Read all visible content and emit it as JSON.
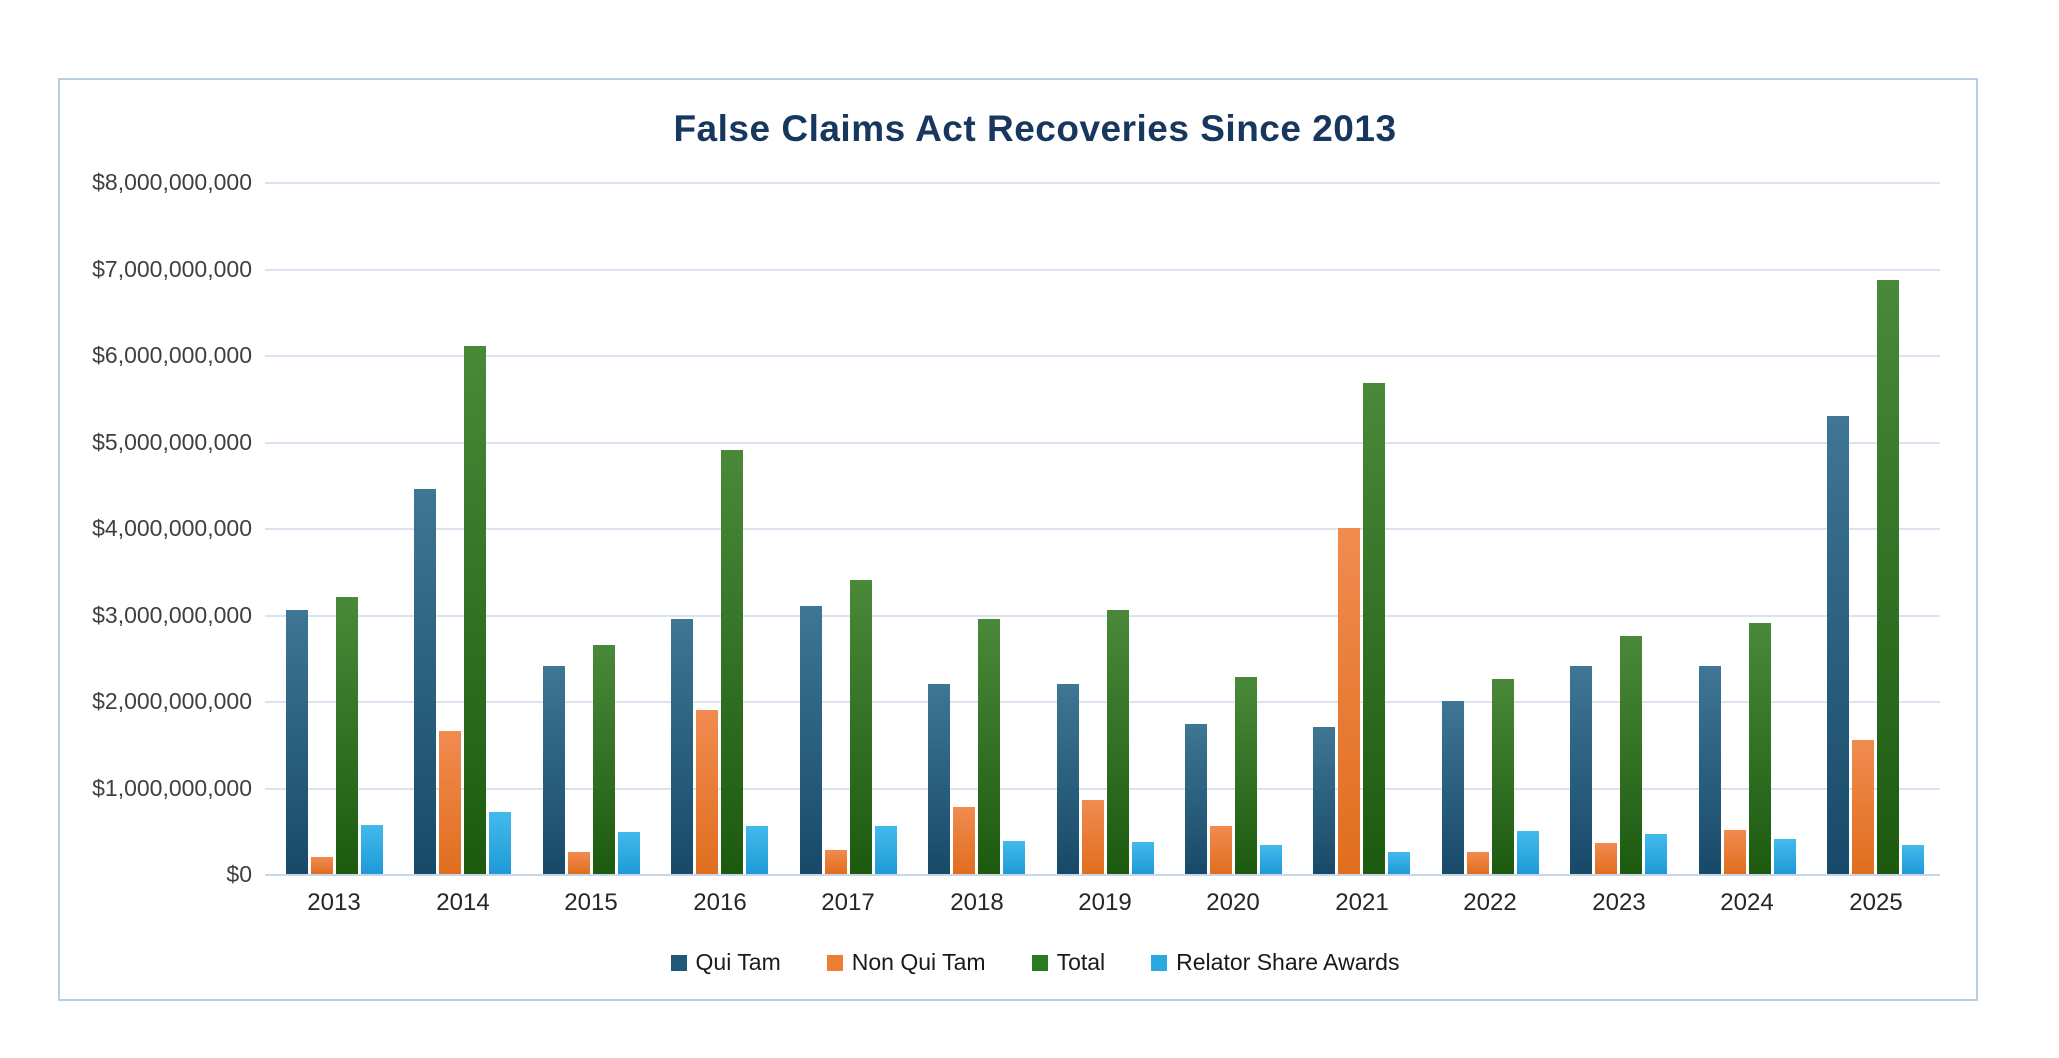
{
  "chart_data": {
    "type": "bar",
    "title": "False Claims Act Recoveries Since 2013",
    "unit": "USD billions",
    "categories": [
      "2013",
      "2014",
      "2015",
      "2016",
      "2017",
      "2018",
      "2019",
      "2020",
      "2021",
      "2022",
      "2023",
      "2024",
      "2025"
    ],
    "series": [
      {
        "name": "Qui Tam",
        "legend_color": "#1f5878",
        "gradient": [
          "#3e7694",
          "#174a68"
        ],
        "values": [
          3.05,
          4.45,
          2.4,
          2.95,
          3.1,
          2.2,
          2.2,
          1.73,
          1.7,
          2.0,
          2.4,
          2.4,
          5.3
        ]
      },
      {
        "name": "Non Qui Tam",
        "legend_color": "#ed7d31",
        "gradient": [
          "#f18b50",
          "#e06e1e"
        ],
        "values": [
          0.2,
          1.65,
          0.25,
          1.9,
          0.28,
          0.78,
          0.85,
          0.56,
          4.0,
          0.25,
          0.36,
          0.51,
          1.55
        ]
      },
      {
        "name": "Total",
        "legend_color": "#2a7a22",
        "gradient": [
          "#4a8939",
          "#1c5a10"
        ],
        "values": [
          3.2,
          6.1,
          2.65,
          4.9,
          3.4,
          2.95,
          3.05,
          2.28,
          5.68,
          2.25,
          2.75,
          2.9,
          6.87
        ]
      },
      {
        "name": "Relator Share Awards",
        "legend_color": "#29a9e0",
        "gradient": [
          "#43baec",
          "#1f9ad7"
        ],
        "values": [
          0.57,
          0.72,
          0.49,
          0.56,
          0.55,
          0.38,
          0.37,
          0.33,
          0.26,
          0.5,
          0.46,
          0.4,
          0.34
        ]
      }
    ],
    "y_axis": {
      "min": 0,
      "max": 8,
      "step": 1,
      "tick_labels": [
        "$0",
        "$1,000,000,000",
        "$2,000,000,000",
        "$3,000,000,000",
        "$4,000,000,000",
        "$5,000,000,000",
        "$6,000,000,000",
        "$7,000,000,000",
        "$8,000,000,000"
      ]
    },
    "x_axis": {
      "label": ""
    },
    "legend_position": "bottom",
    "grid": true
  },
  "colors": {
    "frame_border": "#b9cde5",
    "gridline": "#dae3f0",
    "axis_line": "#c8d6e8",
    "title_text": "#17375e",
    "tick_text": "#3f3f3f",
    "background": "#ffffff"
  }
}
